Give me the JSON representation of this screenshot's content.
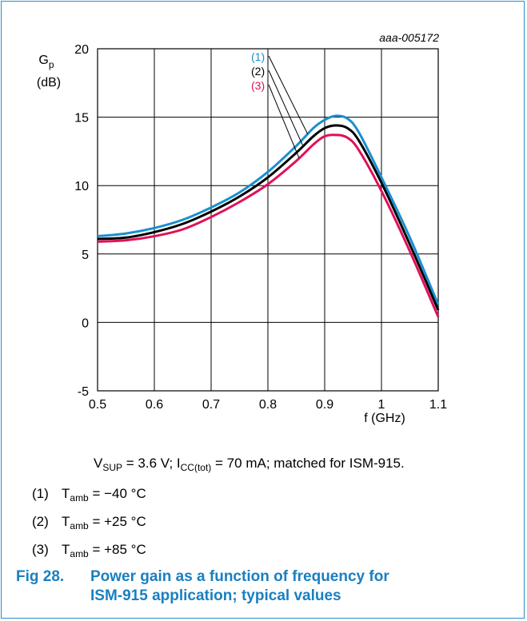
{
  "chart_data": {
    "type": "line",
    "id_label": "aaa-005172",
    "ylabel_main": "G",
    "ylabel_sub": "p",
    "ylabel_unit": "(dB)",
    "xlabel": "f (GHz)",
    "xlim": [
      0.5,
      1.1
    ],
    "ylim": [
      -5,
      20
    ],
    "x_ticks": [
      "0.5",
      "0.6",
      "0.7",
      "0.8",
      "0.9",
      "1",
      "1.1"
    ],
    "y_ticks": [
      "-5",
      "0",
      "5",
      "10",
      "15",
      "20"
    ],
    "grid": true,
    "series": [
      {
        "name": "(1)",
        "color": "#1a8fd0",
        "x": [
          0.5,
          0.55,
          0.6,
          0.65,
          0.7,
          0.75,
          0.8,
          0.85,
          0.88,
          0.9,
          0.92,
          0.94,
          0.96,
          1.0,
          1.05,
          1.1
        ],
        "y": [
          6.3,
          6.5,
          6.9,
          7.5,
          8.4,
          9.5,
          11.0,
          12.9,
          14.2,
          14.8,
          15.1,
          14.9,
          13.9,
          10.6,
          6.2,
          1.3
        ]
      },
      {
        "name": "(2)",
        "color": "#000000",
        "x": [
          0.5,
          0.55,
          0.6,
          0.65,
          0.7,
          0.75,
          0.8,
          0.85,
          0.88,
          0.9,
          0.92,
          0.94,
          0.96,
          1.0,
          1.05,
          1.1
        ],
        "y": [
          6.1,
          6.2,
          6.6,
          7.2,
          8.1,
          9.2,
          10.6,
          12.4,
          13.6,
          14.2,
          14.4,
          14.2,
          13.3,
          10.2,
          5.7,
          0.9
        ]
      },
      {
        "name": "(3)",
        "color": "#e0105a",
        "x": [
          0.5,
          0.55,
          0.6,
          0.65,
          0.7,
          0.75,
          0.8,
          0.85,
          0.88,
          0.9,
          0.92,
          0.94,
          0.96,
          1.0,
          1.05,
          1.1
        ],
        "y": [
          5.9,
          6.0,
          6.3,
          6.8,
          7.7,
          8.8,
          10.1,
          11.8,
          13.0,
          13.6,
          13.7,
          13.5,
          12.6,
          9.6,
          5.2,
          0.4
        ]
      }
    ]
  },
  "conditions": {
    "v": "V",
    "v_sub": "SUP",
    "v_rest": " = 3.6 V; I",
    "i_sub": "CC(tot)",
    "i_rest": " = 70 mA; matched for ISM-915."
  },
  "notes": [
    {
      "num": "(1)",
      "t": "T",
      "t_sub": "amb",
      "value": " = −40 °C"
    },
    {
      "num": "(2)",
      "t": "T",
      "t_sub": "amb",
      "value": " = +25 °C"
    },
    {
      "num": "(3)",
      "t": "T",
      "t_sub": "amb",
      "value": " = +85 °C"
    }
  ],
  "figure": {
    "number": "Fig 28.",
    "caption_line1": "Power gain as a function of frequency for",
    "caption_line2": "ISM-915 application; typical values"
  }
}
